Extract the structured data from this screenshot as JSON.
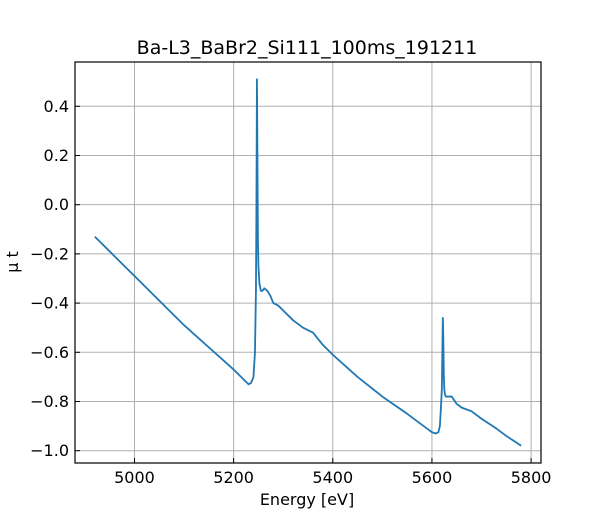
{
  "chart_data": {
    "type": "line",
    "title": "Ba-L3_BaBr2_Si111_100ms_191211",
    "xlabel": "Energy [eV]",
    "ylabel": "μ t",
    "xlim": [
      4880,
      5820
    ],
    "ylim": [
      -1.05,
      0.58
    ],
    "xticks": [
      5000,
      5200,
      5400,
      5600,
      5800
    ],
    "yticks": [
      -1.0,
      -0.8,
      -0.6,
      -0.4,
      -0.2,
      0.0,
      0.2,
      0.4
    ],
    "xtick_labels": [
      "5000",
      "5200",
      "5400",
      "5600",
      "5800"
    ],
    "ytick_labels": [
      "−1.0",
      "−0.8",
      "−0.6",
      "−0.4",
      "−0.2",
      "0.0",
      "0.2",
      "0.4"
    ],
    "grid": true,
    "series": [
      {
        "color": "#1f77b4",
        "x": [
          4920,
          4960,
          5000,
          5050,
          5100,
          5150,
          5200,
          5220,
          5230,
          5235,
          5240,
          5243,
          5245,
          5246,
          5247,
          5248,
          5249,
          5250,
          5252,
          5255,
          5258,
          5262,
          5268,
          5274,
          5280,
          5290,
          5300,
          5320,
          5340,
          5350,
          5360,
          5380,
          5400,
          5450,
          5500,
          5550,
          5590,
          5600,
          5608,
          5613,
          5616,
          5618,
          5620,
          5621,
          5622,
          5623,
          5624,
          5625,
          5626,
          5628,
          5632,
          5640,
          5650,
          5660,
          5680,
          5700,
          5730,
          5750,
          5780
        ],
        "y": [
          -0.13,
          -0.21,
          -0.29,
          -0.39,
          -0.49,
          -0.58,
          -0.67,
          -0.71,
          -0.73,
          -0.725,
          -0.7,
          -0.6,
          -0.35,
          0.0,
          0.51,
          0.2,
          -0.15,
          -0.25,
          -0.32,
          -0.35,
          -0.35,
          -0.34,
          -0.35,
          -0.37,
          -0.4,
          -0.41,
          -0.43,
          -0.47,
          -0.5,
          -0.51,
          -0.52,
          -0.57,
          -0.61,
          -0.7,
          -0.78,
          -0.85,
          -0.91,
          -0.925,
          -0.93,
          -0.925,
          -0.9,
          -0.83,
          -0.75,
          -0.6,
          -0.46,
          -0.55,
          -0.7,
          -0.75,
          -0.77,
          -0.78,
          -0.78,
          -0.78,
          -0.81,
          -0.825,
          -0.84,
          -0.87,
          -0.91,
          -0.94,
          -0.98
        ]
      }
    ]
  }
}
